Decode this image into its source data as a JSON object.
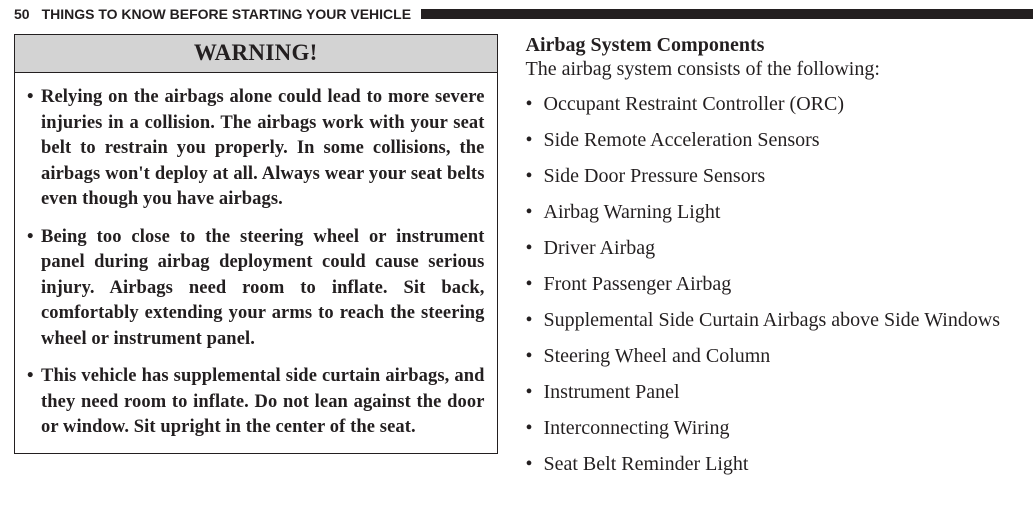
{
  "header": {
    "page_number": "50",
    "section_title": "THINGS TO KNOW BEFORE STARTING YOUR VEHICLE"
  },
  "left": {
    "warning_label": "WARNING!",
    "items": [
      "Relying on the airbags alone could lead to more severe injuries in a collision. The airbags work with your seat belt to restrain you properly. In some collisions, the airbags won't deploy at all. Always wear your seat belts even though you have airbags.",
      "Being too close to the steering wheel or instrument panel during airbag deployment could cause serious injury. Airbags need room to inflate. Sit back, comfortably extending your arms to reach the steering wheel or instrument panel.",
      "This vehicle has supplemental side curtain airbags, and they need room to inflate. Do not lean against the door or window. Sit upright in the center of the seat."
    ]
  },
  "right": {
    "subhead": "Airbag System Components",
    "lead": "The airbag system consists of the following:",
    "items": [
      "Occupant Restraint Controller (ORC)",
      "Side Remote Acceleration Sensors",
      "Side Door Pressure Sensors",
      "Airbag Warning Light",
      "Driver Airbag",
      "Front Passenger Airbag",
      "Supplemental Side Curtain Airbags above Side Windows",
      "Steering Wheel and Column",
      "Instrument Panel",
      "Interconnecting Wiring",
      "Seat Belt Reminder Light"
    ]
  },
  "bullet": "•"
}
